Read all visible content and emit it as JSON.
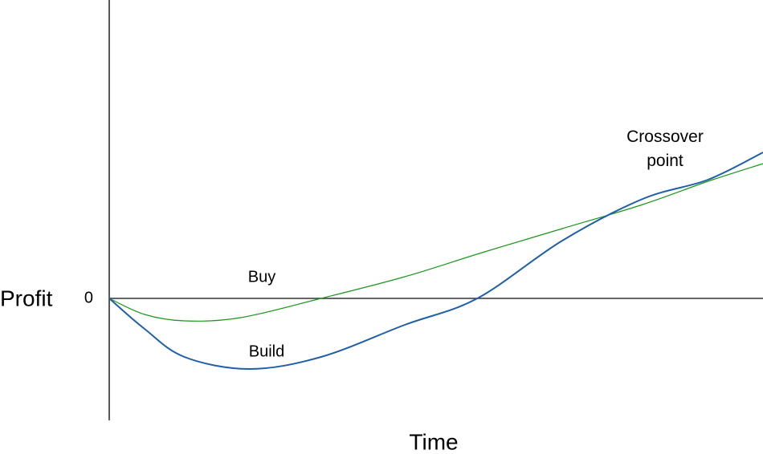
{
  "chart_data": {
    "type": "line",
    "x_label": "Time",
    "y_label": "Profit",
    "annotation": "Crossover point",
    "xlim": [
      0,
      100
    ],
    "ylim": [
      -15.2,
      37.2
    ],
    "yticks": [
      0
    ],
    "series": [
      {
        "name": "Buy",
        "color": "#1a961a",
        "x": [
          0,
          5.4,
          11.5,
          20.1,
          32.4,
          45.2,
          57.0,
          69.3,
          81.6,
          91.6,
          100
        ],
        "values": [
          0,
          -2.0,
          -2.8,
          -2.4,
          0,
          2.7,
          5.7,
          8.7,
          11.7,
          14.6,
          16.8
        ]
      },
      {
        "name": "Build",
        "color": "#1f5fa8",
        "x": [
          0,
          5.4,
          11.5,
          21.4,
          32.4,
          45.2,
          56.3,
          69.3,
          81.6,
          91.6,
          100
        ],
        "values": [
          0,
          -3.8,
          -7.3,
          -8.8,
          -7.3,
          -3.3,
          0,
          7.2,
          12.4,
          14.8,
          18.2
        ]
      }
    ]
  }
}
